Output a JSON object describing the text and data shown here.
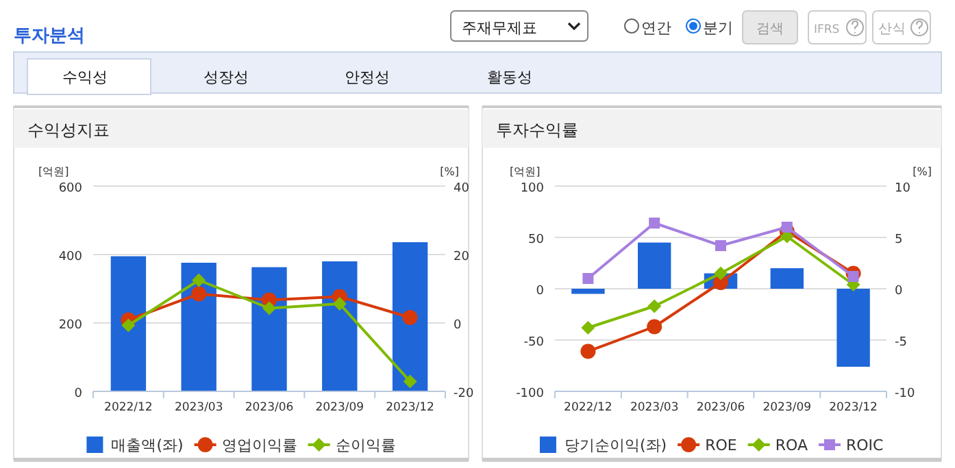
{
  "chart_data": [
    {
      "type": "bar",
      "title": "수익성지표",
      "ylabel": "[억원]",
      "y2label": "[%]",
      "annotations": [
        "투자분석",
        "주재무제표",
        "연간",
        "분기",
        "검색",
        "IFRS",
        "산식",
        "수익성",
        "성장성",
        "안정성",
        "활동성"
      ],
      "categories": [
        "2022/12",
        "2023/03",
        "2023/06",
        "2023/09",
        "2023/12"
      ],
      "series": [
        {
          "name": "매출액(좌)",
          "color": "#1f66d9",
          "values": [
            395,
            376,
            363,
            380,
            436
          ]
        },
        {
          "name": "영업이익률",
          "type": "line",
          "axis": "y2",
          "marker": "circle",
          "color": "#d63a0a",
          "values": [
            0.9,
            8.5,
            6.7,
            7.7,
            1.6
          ]
        },
        {
          "name": "순이익률",
          "type": "line",
          "axis": "y2",
          "marker": "diamond",
          "color": "#7fba00",
          "values": [
            -0.7,
            12.5,
            4.3,
            5.6,
            -17.1
          ]
        }
      ],
      "ylim": [
        0,
        600
      ],
      "yticks": [
        0,
        200,
        400,
        600
      ],
      "y2lim": [
        -20,
        40
      ],
      "y2ticks": [
        -20,
        0,
        20,
        40
      ],
      "grid": "y",
      "legend": "bottom"
    },
    {
      "type": "bar",
      "title": "투자수익률",
      "ylabel": "[억원]",
      "y2label": "[%]",
      "categories": [
        "2022/12",
        "2023/03",
        "2023/06",
        "2023/09",
        "2023/12"
      ],
      "series": [
        {
          "name": "당기순이익(좌)",
          "color": "#1f66d9",
          "values": [
            -5,
            45,
            15,
            20,
            -76
          ]
        },
        {
          "name": "ROE",
          "type": "line",
          "axis": "y2",
          "marker": "circle",
          "color": "#d63a0a",
          "values": [
            -6.1,
            -3.7,
            0.6,
            5.6,
            1.5
          ]
        },
        {
          "name": "ROA",
          "type": "line",
          "axis": "y2",
          "marker": "diamond",
          "color": "#7fba00",
          "values": [
            -3.8,
            -1.7,
            1.5,
            5.1,
            0.4
          ]
        },
        {
          "name": "ROIC",
          "type": "line",
          "axis": "y2",
          "marker": "square",
          "color": "#a67fe0",
          "values": [
            1.0,
            6.4,
            4.2,
            6.0,
            1.2
          ]
        }
      ],
      "ylim": [
        -100,
        100
      ],
      "yticks": [
        -100,
        -50,
        0,
        50,
        100
      ],
      "y2lim": [
        -10,
        10
      ],
      "y2ticks": [
        -10,
        -5,
        0,
        5,
        10
      ],
      "grid": "y",
      "legend": "bottom"
    }
  ]
}
